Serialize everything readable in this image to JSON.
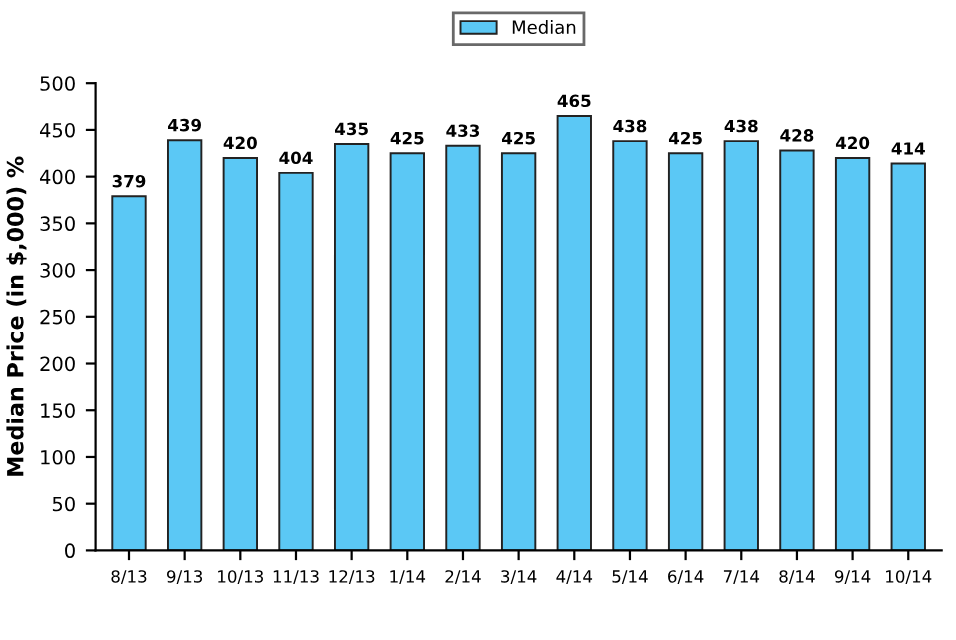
{
  "chart_data": {
    "type": "bar",
    "ylabel": "Median Price (in $,000) %",
    "categories": [
      "8/13",
      "9/13",
      "10/13",
      "11/13",
      "12/13",
      "1/14",
      "2/14",
      "3/14",
      "4/14",
      "5/14",
      "6/14",
      "7/14",
      "8/14",
      "9/14",
      "10/14"
    ],
    "series": [
      {
        "name": "Median",
        "color": "#5bc8f5",
        "values": [
          379,
          439,
          420,
          404,
          435,
          425,
          433,
          425,
          465,
          438,
          425,
          438,
          428,
          420,
          414
        ]
      }
    ],
    "ylim": [
      0,
      500
    ],
    "yticks": [
      0,
      50,
      100,
      150,
      200,
      250,
      300,
      350,
      400,
      450,
      500
    ],
    "data_labels": true,
    "legend": "top",
    "grid": false
  }
}
